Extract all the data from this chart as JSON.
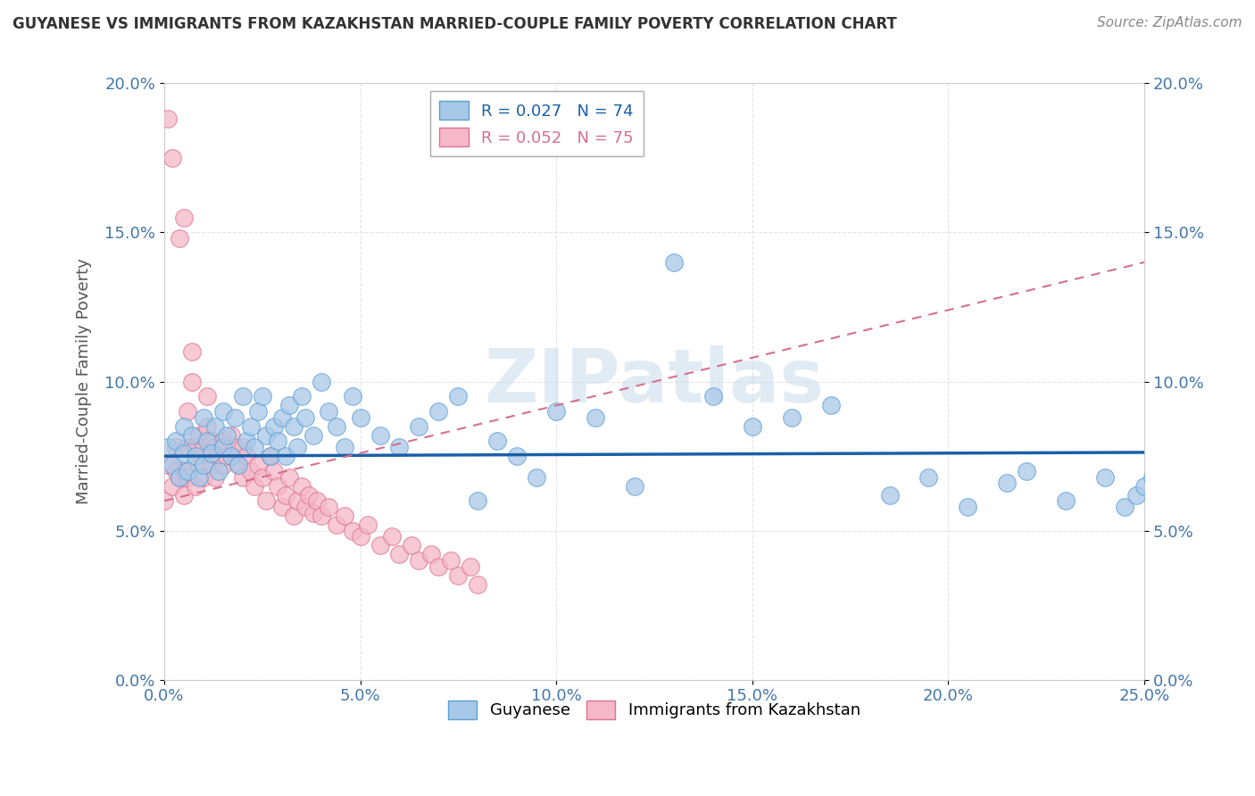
{
  "title": "GUYANESE VS IMMIGRANTS FROM KAZAKHSTAN MARRIED-COUPLE FAMILY POVERTY CORRELATION CHART",
  "source": "Source: ZipAtlas.com",
  "ylabel": "Married-Couple Family Poverty",
  "xlim": [
    0.0,
    0.25
  ],
  "ylim": [
    0.0,
    0.2
  ],
  "xticks": [
    0.0,
    0.05,
    0.1,
    0.15,
    0.2,
    0.25
  ],
  "yticks": [
    0.0,
    0.05,
    0.1,
    0.15,
    0.2
  ],
  "xticklabels": [
    "0.0%",
    "5.0%",
    "10.0%",
    "15.0%",
    "20.0%",
    "25.0%"
  ],
  "yticklabels": [
    "0.0%",
    "5.0%",
    "10.0%",
    "15.0%",
    "20.0%"
  ],
  "blue_color": "#a8c8e8",
  "blue_edge_color": "#5a9fd4",
  "pink_color": "#f4b8c8",
  "pink_edge_color": "#e07090",
  "blue_line_color": "#1a5fa8",
  "pink_line_color": "#d47090",
  "legend_R_blue": "R = 0.027",
  "legend_N_blue": "N = 74",
  "legend_R_pink": "R = 0.052",
  "legend_N_pink": "N = 75",
  "blue_intercept": 0.075,
  "blue_slope": 0.005,
  "pink_intercept": 0.06,
  "pink_slope": 0.32,
  "watermark": "ZIPatlas",
  "blue_x": [
    0.001,
    0.002,
    0.003,
    0.004,
    0.005,
    0.005,
    0.006,
    0.007,
    0.008,
    0.009,
    0.01,
    0.01,
    0.011,
    0.012,
    0.013,
    0.014,
    0.015,
    0.015,
    0.016,
    0.017,
    0.018,
    0.019,
    0.02,
    0.021,
    0.022,
    0.023,
    0.024,
    0.025,
    0.026,
    0.027,
    0.028,
    0.029,
    0.03,
    0.031,
    0.032,
    0.033,
    0.034,
    0.035,
    0.036,
    0.038,
    0.04,
    0.042,
    0.044,
    0.046,
    0.048,
    0.05,
    0.055,
    0.06,
    0.065,
    0.07,
    0.075,
    0.08,
    0.085,
    0.09,
    0.095,
    0.1,
    0.11,
    0.12,
    0.13,
    0.14,
    0.15,
    0.16,
    0.17,
    0.185,
    0.195,
    0.205,
    0.215,
    0.22,
    0.23,
    0.24,
    0.245,
    0.248,
    0.25,
    0.252
  ],
  "blue_y": [
    0.078,
    0.072,
    0.08,
    0.068,
    0.076,
    0.085,
    0.07,
    0.082,
    0.075,
    0.068,
    0.088,
    0.072,
    0.08,
    0.076,
    0.085,
    0.07,
    0.078,
    0.09,
    0.082,
    0.075,
    0.088,
    0.072,
    0.095,
    0.08,
    0.085,
    0.078,
    0.09,
    0.095,
    0.082,
    0.075,
    0.085,
    0.08,
    0.088,
    0.075,
    0.092,
    0.085,
    0.078,
    0.095,
    0.088,
    0.082,
    0.1,
    0.09,
    0.085,
    0.078,
    0.095,
    0.088,
    0.082,
    0.078,
    0.085,
    0.09,
    0.095,
    0.06,
    0.08,
    0.075,
    0.068,
    0.09,
    0.088,
    0.065,
    0.14,
    0.095,
    0.085,
    0.088,
    0.092,
    0.062,
    0.068,
    0.058,
    0.066,
    0.07,
    0.06,
    0.068,
    0.058,
    0.062,
    0.065,
    0.068
  ],
  "pink_x": [
    0.0,
    0.001,
    0.001,
    0.002,
    0.002,
    0.003,
    0.003,
    0.004,
    0.004,
    0.005,
    0.005,
    0.005,
    0.006,
    0.006,
    0.006,
    0.007,
    0.007,
    0.008,
    0.008,
    0.009,
    0.009,
    0.01,
    0.01,
    0.011,
    0.011,
    0.012,
    0.012,
    0.013,
    0.013,
    0.014,
    0.015,
    0.015,
    0.016,
    0.017,
    0.018,
    0.019,
    0.02,
    0.02,
    0.021,
    0.022,
    0.023,
    0.024,
    0.025,
    0.026,
    0.027,
    0.028,
    0.029,
    0.03,
    0.031,
    0.032,
    0.033,
    0.034,
    0.035,
    0.036,
    0.037,
    0.038,
    0.039,
    0.04,
    0.042,
    0.044,
    0.046,
    0.048,
    0.05,
    0.052,
    0.055,
    0.058,
    0.06,
    0.063,
    0.065,
    0.068,
    0.07,
    0.073,
    0.075,
    0.078,
    0.08
  ],
  "pink_y": [
    0.06,
    0.072,
    0.188,
    0.065,
    0.175,
    0.07,
    0.078,
    0.068,
    0.148,
    0.155,
    0.062,
    0.07,
    0.068,
    0.078,
    0.09,
    0.1,
    0.11,
    0.065,
    0.078,
    0.072,
    0.082,
    0.068,
    0.078,
    0.085,
    0.095,
    0.072,
    0.08,
    0.078,
    0.068,
    0.075,
    0.072,
    0.08,
    0.075,
    0.082,
    0.078,
    0.072,
    0.068,
    0.078,
    0.075,
    0.07,
    0.065,
    0.072,
    0.068,
    0.06,
    0.075,
    0.07,
    0.065,
    0.058,
    0.062,
    0.068,
    0.055,
    0.06,
    0.065,
    0.058,
    0.062,
    0.056,
    0.06,
    0.055,
    0.058,
    0.052,
    0.055,
    0.05,
    0.048,
    0.052,
    0.045,
    0.048,
    0.042,
    0.045,
    0.04,
    0.042,
    0.038,
    0.04,
    0.035,
    0.038,
    0.032
  ]
}
